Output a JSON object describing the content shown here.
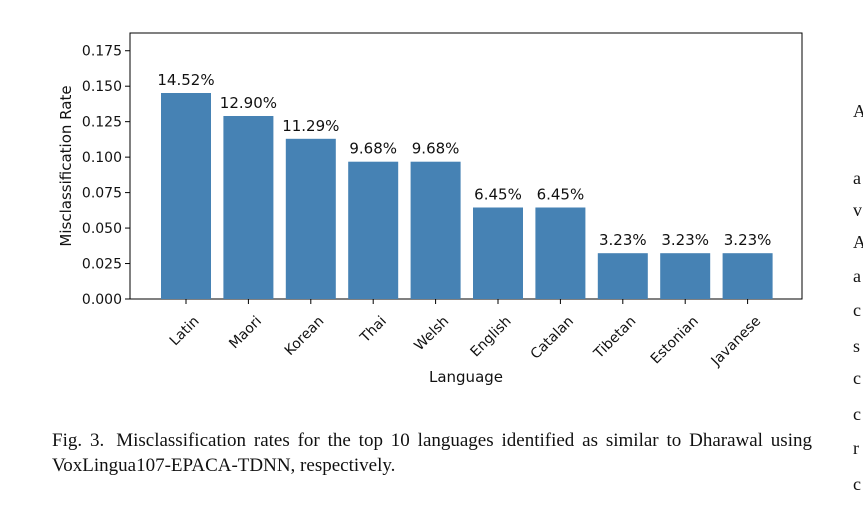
{
  "chart_data": {
    "type": "bar",
    "categories": [
      "Latin",
      "Maori",
      "Korean",
      "Thai",
      "Welsh",
      "English",
      "Catalan",
      "Tibetan",
      "Estonian",
      "Javanese"
    ],
    "values": [
      0.1452,
      0.129,
      0.1129,
      0.0968,
      0.0968,
      0.0645,
      0.0645,
      0.0323,
      0.0323,
      0.0323
    ],
    "data_labels": [
      "14.52%",
      "12.90%",
      "11.29%",
      "9.68%",
      "9.68%",
      "6.45%",
      "6.45%",
      "3.23%",
      "3.23%",
      "3.23%"
    ],
    "xlabel": "Language",
    "ylabel": "Misclassification Rate",
    "ylim": [
      0,
      0.1875
    ],
    "yticks": [
      "0.000",
      "0.025",
      "0.050",
      "0.075",
      "0.100",
      "0.125",
      "0.150",
      "0.175"
    ],
    "bar_color": "#4682b4",
    "grid": false
  },
  "caption": {
    "label": "Fig. 3.",
    "text": "Misclassification rates for the top 10 languages identified as similar to Dharawal using VoxLingua107-EPACA-TDNN, respectively."
  },
  "side_letters": [
    "A",
    "a",
    "v",
    "A",
    "a",
    "c",
    "s",
    "c",
    "c",
    "r",
    "c"
  ]
}
